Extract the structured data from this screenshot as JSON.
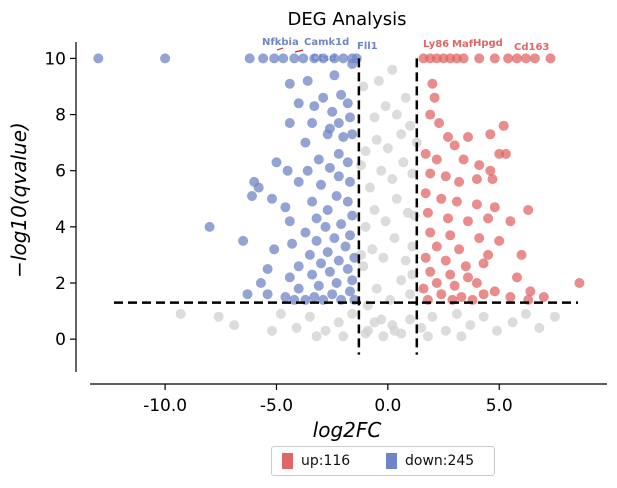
{
  "chart_data": {
    "type": "scatter",
    "title": "DEG Analysis",
    "xlabel": "log2FC",
    "ylabel": "−log10(qvalue)",
    "xlim": [
      -14,
      9.3
    ],
    "ylim": [
      -0.6,
      10.3
    ],
    "x_ticks": [
      -10.0,
      -5.0,
      0.0,
      5.0
    ],
    "x_tick_labels": [
      "-10.0",
      "-5.0",
      "0.0",
      "5.0"
    ],
    "y_ticks": [
      0,
      2,
      4,
      6,
      8,
      10
    ],
    "y_tick_labels": [
      "0",
      "2",
      "4",
      "6",
      "8",
      "10"
    ],
    "thresholds": {
      "log2fc": [
        -1.3,
        1.3
      ],
      "neg_log10_q": 1.3
    },
    "colors": {
      "up": "#e06666",
      "down": "#6f86c6",
      "ns": "#d3d3d3"
    },
    "legend": {
      "position": "bottom-center",
      "entries": [
        {
          "label": "up:116",
          "color": "#e06666"
        },
        {
          "label": "down:245",
          "color": "#6f86c6"
        }
      ]
    },
    "series": [
      {
        "name": "up",
        "count": 116,
        "color": "#e06666",
        "points": [
          [
            1.6,
            10
          ],
          [
            1.9,
            10
          ],
          [
            2.2,
            10
          ],
          [
            2.5,
            10
          ],
          [
            2.8,
            10
          ],
          [
            3.1,
            10
          ],
          [
            3.4,
            10
          ],
          [
            4.1,
            10
          ],
          [
            4.8,
            10
          ],
          [
            5.4,
            10
          ],
          [
            5.8,
            10
          ],
          [
            6.2,
            10
          ],
          [
            6.6,
            10
          ],
          [
            7.3,
            10
          ],
          [
            2.0,
            9.1
          ],
          [
            2.1,
            8.6
          ],
          [
            1.9,
            8.0
          ],
          [
            2.3,
            7.7
          ],
          [
            3.6,
            7.2
          ],
          [
            4.6,
            7.3
          ],
          [
            5.2,
            7.6
          ],
          [
            2.7,
            7.2
          ],
          [
            3.0,
            6.9
          ],
          [
            1.7,
            6.6
          ],
          [
            2.2,
            6.4
          ],
          [
            3.4,
            6.4
          ],
          [
            4.1,
            6.2
          ],
          [
            4.6,
            6.0
          ],
          [
            5.0,
            6.6
          ],
          [
            5.3,
            6.6
          ],
          [
            1.9,
            5.9
          ],
          [
            2.6,
            5.8
          ],
          [
            3.2,
            5.6
          ],
          [
            4.0,
            5.7
          ],
          [
            4.7,
            5.7
          ],
          [
            1.7,
            5.2
          ],
          [
            2.4,
            5.0
          ],
          [
            3.1,
            4.9
          ],
          [
            4.0,
            4.8
          ],
          [
            4.8,
            4.7
          ],
          [
            6.3,
            4.6
          ],
          [
            1.8,
            4.5
          ],
          [
            2.7,
            4.3
          ],
          [
            3.6,
            4.2
          ],
          [
            4.5,
            4.3
          ],
          [
            5.5,
            4.2
          ],
          [
            1.9,
            3.8
          ],
          [
            2.8,
            3.7
          ],
          [
            4.1,
            3.6
          ],
          [
            5.0,
            3.5
          ],
          [
            6.0,
            3.0
          ],
          [
            2.2,
            3.3
          ],
          [
            3.2,
            3.2
          ],
          [
            4.5,
            3.0
          ],
          [
            1.7,
            2.9
          ],
          [
            2.6,
            2.8
          ],
          [
            3.5,
            2.6
          ],
          [
            4.3,
            2.7
          ],
          [
            1.9,
            2.4
          ],
          [
            2.8,
            2.3
          ],
          [
            3.6,
            2.2
          ],
          [
            4.0,
            2.0
          ],
          [
            8.6,
            2.0
          ],
          [
            5.8,
            2.2
          ],
          [
            2.2,
            2.0
          ],
          [
            3.0,
            1.9
          ],
          [
            4.8,
            1.7
          ],
          [
            6.4,
            1.7
          ],
          [
            7.0,
            1.5
          ],
          [
            1.6,
            1.8
          ],
          [
            2.4,
            1.6
          ],
          [
            3.3,
            1.5
          ],
          [
            4.3,
            1.6
          ],
          [
            5.5,
            1.5
          ],
          [
            6.3,
            1.4
          ],
          [
            1.8,
            1.4
          ],
          [
            2.9,
            1.4
          ],
          [
            3.8,
            1.4
          ]
        ]
      },
      {
        "name": "down",
        "count": 245,
        "color": "#6f86c6",
        "points": [
          [
            -13,
            10
          ],
          [
            -10,
            10
          ],
          [
            -6.2,
            10
          ],
          [
            -5.6,
            10
          ],
          [
            -5.1,
            10
          ],
          [
            -4.7,
            10
          ],
          [
            -4.2,
            10
          ],
          [
            -3.8,
            10
          ],
          [
            -3.3,
            10
          ],
          [
            -2.9,
            10
          ],
          [
            -2.4,
            10
          ],
          [
            -2.0,
            10
          ],
          [
            -1.6,
            10
          ],
          [
            -1.4,
            10
          ],
          [
            -1.6,
            9.8
          ],
          [
            -2.4,
            9.4
          ],
          [
            -3.6,
            9.2
          ],
          [
            -4.4,
            9.1
          ],
          [
            -2.1,
            8.7
          ],
          [
            -2.9,
            8.6
          ],
          [
            -1.8,
            8.4
          ],
          [
            -3.3,
            8.3
          ],
          [
            -2.5,
            8.1
          ],
          [
            -1.7,
            7.9
          ],
          [
            -2.2,
            7.7
          ],
          [
            -3.4,
            7.7
          ],
          [
            -4.0,
            8.4
          ],
          [
            -4.4,
            7.7
          ],
          [
            -2.6,
            7.5
          ],
          [
            -1.6,
            7.3
          ],
          [
            -2.0,
            7.2
          ],
          [
            -2.7,
            7.3
          ],
          [
            -3.7,
            7.0
          ],
          [
            -5.0,
            6.3
          ],
          [
            -2.2,
            6.6
          ],
          [
            -3.1,
            6.4
          ],
          [
            -1.8,
            6.3
          ],
          [
            -2.6,
            6.1
          ],
          [
            -3.6,
            6.0
          ],
          [
            -4.5,
            6.0
          ],
          [
            -6.0,
            5.6
          ],
          [
            -5.8,
            5.4
          ],
          [
            -2.2,
            5.8
          ],
          [
            -1.7,
            5.6
          ],
          [
            -3.0,
            5.5
          ],
          [
            -4.0,
            5.6
          ],
          [
            -5.2,
            5.0
          ],
          [
            -6.1,
            5.1
          ],
          [
            -2.3,
            5.1
          ],
          [
            -1.8,
            4.9
          ],
          [
            -3.4,
            4.9
          ],
          [
            -4.6,
            4.7
          ],
          [
            -2.7,
            4.6
          ],
          [
            -1.6,
            4.4
          ],
          [
            -3.2,
            4.3
          ],
          [
            -4.4,
            4.2
          ],
          [
            -8.0,
            4.0
          ],
          [
            -6.5,
            3.5
          ],
          [
            -2.1,
            4.1
          ],
          [
            -2.8,
            4.0
          ],
          [
            -3.7,
            3.8
          ],
          [
            -1.7,
            3.7
          ],
          [
            -2.4,
            3.6
          ],
          [
            -3.2,
            3.5
          ],
          [
            -4.3,
            3.4
          ],
          [
            -5.1,
            3.2
          ],
          [
            -1.9,
            3.3
          ],
          [
            -2.7,
            3.1
          ],
          [
            -3.5,
            3.0
          ],
          [
            -1.5,
            2.9
          ],
          [
            -2.2,
            2.8
          ],
          [
            -3.0,
            2.7
          ],
          [
            -4.0,
            2.6
          ],
          [
            -5.4,
            2.5
          ],
          [
            -1.8,
            2.5
          ],
          [
            -2.6,
            2.4
          ],
          [
            -3.4,
            2.3
          ],
          [
            -4.4,
            2.2
          ],
          [
            -1.6,
            2.1
          ],
          [
            -2.3,
            2.0
          ],
          [
            -3.1,
            1.9
          ],
          [
            -4.0,
            1.8
          ],
          [
            -5.7,
            2.0
          ],
          [
            -6.3,
            1.6
          ],
          [
            -1.7,
            1.7
          ],
          [
            -2.5,
            1.6
          ],
          [
            -3.3,
            1.5
          ],
          [
            -4.6,
            1.5
          ],
          [
            -5.4,
            1.6
          ],
          [
            -1.5,
            1.4
          ],
          [
            -2.1,
            1.4
          ],
          [
            -2.9,
            1.4
          ],
          [
            -3.7,
            1.4
          ],
          [
            -4.2,
            1.4
          ]
        ]
      },
      {
        "name": "ns",
        "color": "#d3d3d3",
        "points": [
          [
            -9.3,
            0.9
          ],
          [
            -7.6,
            0.8
          ],
          [
            -6.9,
            0.5
          ],
          [
            -5.2,
            0.3
          ],
          [
            -4.8,
            0.9
          ],
          [
            -4.1,
            0.4
          ],
          [
            -3.5,
            0.8
          ],
          [
            -2.8,
            0.3
          ],
          [
            -2.2,
            0.6
          ],
          [
            -1.6,
            0.9
          ],
          [
            -1.0,
            0.2
          ],
          [
            -0.6,
            0.6
          ],
          [
            -0.2,
            0.1
          ],
          [
            0.2,
            0.5
          ],
          [
            0.6,
            0.2
          ],
          [
            1.0,
            0.7
          ],
          [
            1.5,
            0.4
          ],
          [
            2.0,
            0.8
          ],
          [
            2.6,
            0.3
          ],
          [
            3.1,
            0.9
          ],
          [
            3.7,
            0.5
          ],
          [
            4.3,
            0.8
          ],
          [
            4.9,
            0.3
          ],
          [
            5.6,
            0.6
          ],
          [
            6.2,
            0.9
          ],
          [
            6.8,
            0.4
          ],
          [
            7.5,
            0.8
          ],
          [
            -0.9,
            1.2
          ],
          [
            -0.5,
            1.8
          ],
          [
            0.1,
            1.4
          ],
          [
            0.6,
            2.1
          ],
          [
            1.0,
            1.6
          ],
          [
            -1.1,
            2.6
          ],
          [
            -0.7,
            3.2
          ],
          [
            -0.2,
            2.9
          ],
          [
            0.3,
            3.6
          ],
          [
            0.8,
            2.8
          ],
          [
            1.1,
            3.3
          ],
          [
            -1.0,
            4.0
          ],
          [
            -0.6,
            4.6
          ],
          [
            -0.1,
            4.2
          ],
          [
            0.4,
            5.0
          ],
          [
            0.9,
            4.5
          ],
          [
            -0.8,
            5.4
          ],
          [
            -0.3,
            6.0
          ],
          [
            0.2,
            5.7
          ],
          [
            0.7,
            6.3
          ],
          [
            1.1,
            5.9
          ],
          [
            -1.0,
            6.7
          ],
          [
            -0.5,
            7.1
          ],
          [
            0.0,
            6.8
          ],
          [
            0.6,
            7.3
          ],
          [
            1.0,
            7.6
          ],
          [
            -0.6,
            7.9
          ],
          [
            -0.1,
            8.3
          ],
          [
            0.4,
            8.0
          ],
          [
            0.8,
            8.6
          ],
          [
            -0.4,
            9.2
          ],
          [
            0.2,
            9.6
          ],
          [
            -1.1,
            9.0
          ],
          [
            1.3,
            7.0
          ],
          [
            -1.2,
            6.2
          ],
          [
            1.2,
            4.4
          ],
          [
            -1.2,
            3.0
          ],
          [
            1.1,
            2.3
          ],
          [
            -0.9,
            0.3
          ],
          [
            0.3,
            0.3
          ],
          [
            -0.3,
            0.7
          ],
          [
            1.8,
            0.1
          ],
          [
            -2.0,
            0.1
          ],
          [
            3.3,
            0.1
          ],
          [
            -3.2,
            0.1
          ]
        ]
      }
    ],
    "annotations": [
      {
        "text": "Nfkbia",
        "group": "down"
      },
      {
        "text": "Camk1d",
        "group": "down"
      },
      {
        "text": "Ctsd",
        "group": "down"
      },
      {
        "text": "Fll1",
        "group": "down"
      },
      {
        "text": "Ly86",
        "group": "up"
      },
      {
        "text": "Maf",
        "group": "up"
      },
      {
        "text": "Hpgd",
        "group": "up"
      },
      {
        "text": "Cd163",
        "group": "up"
      }
    ]
  }
}
